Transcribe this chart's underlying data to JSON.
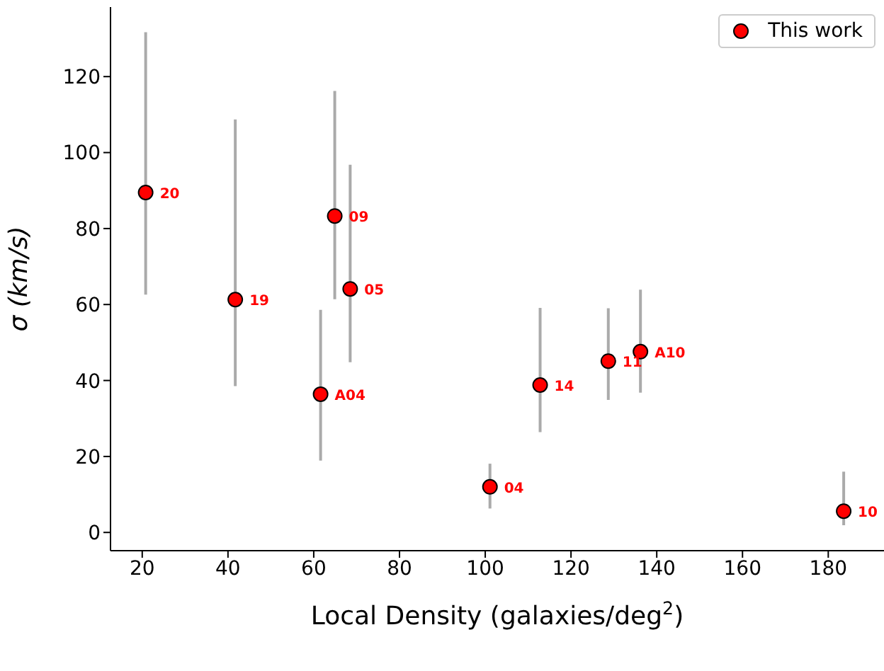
{
  "chart_data": {
    "type": "scatter",
    "xlabel": "Local Density (galaxies/deg$^{2}$)",
    "ylabel": "σ (km/s)",
    "xlim": [
      12.6,
      193
    ],
    "ylim": [
      -4.8,
      138.3
    ],
    "xticks": [
      20,
      40,
      60,
      80,
      100,
      120,
      140,
      160,
      180
    ],
    "yticks": [
      0,
      20,
      40,
      60,
      80,
      100,
      120
    ],
    "grid": false,
    "legend": "top right",
    "marker": "circle",
    "series": [
      {
        "name": "This work",
        "color": "#ff0000",
        "x": [
          20.8,
          41.7,
          61.6,
          64.9,
          68.5,
          101.1,
          112.8,
          128.7,
          136.2,
          183.6
        ],
        "values": [
          89.5,
          61.3,
          36.4,
          83.3,
          64.1,
          12.0,
          38.8,
          45.1,
          47.6,
          5.6
        ],
        "errors": [
          [
            62.6,
            131.7
          ],
          [
            38.5,
            108.7
          ],
          [
            18.9,
            58.6
          ],
          [
            61.4,
            116.2
          ],
          [
            44.8,
            96.8
          ],
          [
            6.3,
            18.1
          ],
          [
            26.4,
            59.1
          ],
          [
            34.9,
            59.0
          ],
          [
            36.8,
            63.9
          ],
          [
            1.9,
            16.0
          ]
        ]
      }
    ],
    "annotations": [
      {
        "text": "20",
        "x": 20.8,
        "y": 89.5
      },
      {
        "text": "19",
        "x": 41.7,
        "y": 61.3
      },
      {
        "text": "A04",
        "x": 61.6,
        "y": 36.4
      },
      {
        "text": "09",
        "x": 64.9,
        "y": 83.3
      },
      {
        "text": "05",
        "x": 68.5,
        "y": 64.1
      },
      {
        "text": "04",
        "x": 101.1,
        "y": 12.0
      },
      {
        "text": "14",
        "x": 112.8,
        "y": 38.8
      },
      {
        "text": "11",
        "x": 128.7,
        "y": 45.1
      },
      {
        "text": "A10",
        "x": 136.2,
        "y": 47.6
      },
      {
        "text": "10",
        "x": 183.6,
        "y": 5.6
      }
    ]
  }
}
